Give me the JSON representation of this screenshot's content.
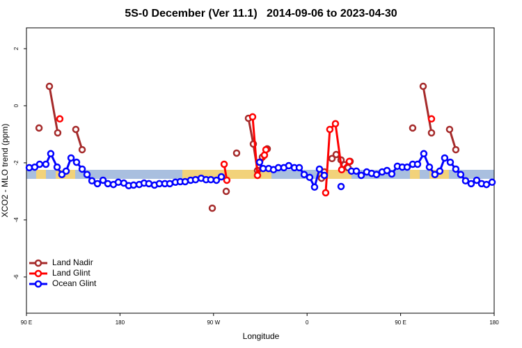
{
  "chart_data": {
    "type": "line",
    "title": "5S-0 December (Ver 11.1)   2014-09-06 to 2023-04-30",
    "x_label": "Longitude",
    "y_label": "XCO2 - MLO trend (ppm)",
    "xlim": [
      90,
      540
    ],
    "ylim": [
      -7.27,
      2.73
    ],
    "xticks": [
      {
        "value": 90,
        "label": "90 E"
      },
      180,
      {
        "value": 270,
        "label": "90 W"
      },
      {
        "value": 360,
        "label": "0"
      },
      {
        "value": 450,
        "label": "90 E"
      },
      {
        "value": 540,
        "label": "180"
      }
    ],
    "yticks": [
      -6,
      -4,
      -2,
      0,
      2
    ],
    "legend": "bottomleft",
    "series": [
      {
        "name": "Land Nadir",
        "color": "#a52a2a",
        "x": [
          102.1,
          null,
          112.1,
          120.1,
          null,
          137.5,
          143.6,
          null,
          268.8,
          null,
          282.2,
          null,
          292.2,
          null,
          303.6,
          308.3,
          312.3,
          null,
          317.0,
          321.7,
          null,
          373.9,
          376.6,
          null,
          384.0,
          388.0,
          392.7,
          396.0,
          399.4,
          401.4,
          null,
          461.6,
          null,
          471.7,
          479.7,
          null,
          497.1,
          503.1
        ],
        "values": [
          -0.78,
          null,
          0.68,
          -0.95,
          null,
          -0.83,
          -1.54,
          null,
          -3.59,
          null,
          -3.0,
          null,
          -1.66,
          null,
          -0.44,
          -1.34,
          -2.27,
          null,
          -1.8,
          -1.51,
          null,
          -2.54,
          -2.32,
          null,
          -1.85,
          -1.71,
          -1.9,
          -2.07,
          -2.17,
          -1.95,
          null,
          -0.78,
          null,
          0.68,
          -0.95,
          null,
          -0.83,
          -1.54
        ]
      },
      {
        "name": "Land Glint",
        "color": "#ff0000",
        "x": [
          122.1,
          null,
          280.2,
          282.8,
          null,
          307.6,
          312.3,
          319.0,
          320.4,
          null,
          377.9,
          381.9,
          387.3,
          393.3,
          400.7,
          null,
          479.7
        ],
        "values": [
          -0.46,
          null,
          -2.05,
          -2.61,
          null,
          -0.39,
          -2.44,
          -1.73,
          -1.54,
          null,
          -3.05,
          -0.83,
          -0.63,
          -2.24,
          -1.95,
          null,
          -0.46
        ]
      },
      {
        "name": "Ocean Glint",
        "color": "#0000ff",
        "x": [
          92.7,
          98.0,
          102.7,
          108.7,
          113.4,
          119.5,
          124.1,
          128.2,
          132.9,
          138.2,
          143.6,
          148.3,
          153.0,
          158.3,
          163.7,
          168.3,
          173.7,
          178.4,
          183.7,
          188.4,
          193.1,
          198.5,
          203.2,
          207.8,
          213.2,
          217.9,
          223.2,
          227.9,
          233.3,
          238.0,
          242.7,
          248.0,
          252.7,
          258.1,
          262.8,
          267.4,
          272.8,
          277.5,
          null,
          314.3,
          317.7,
          323.0,
          327.7,
          332.4,
          337.7,
          342.4,
          347.8,
          352.5,
          357.2,
          362.5,
          367.2,
          371.9,
          376.6,
          null,
          392.7,
          null,
          402.7,
          407.4,
          412.1,
          417.4,
          422.1,
          426.8,
          432.2,
          436.9,
          441.5,
          446.9,
          451.6,
          456.3,
          461.6,
          466.3,
          472.3,
          477.7,
          483.0,
          487.7,
          492.4,
          497.8,
          503.1,
          507.8,
          512.5,
          517.9,
          523.2,
          527.9,
          532.6,
          538.0
        ],
        "values": [
          -2.17,
          -2.15,
          -2.05,
          -2.05,
          -1.68,
          -2.15,
          -2.41,
          -2.29,
          -1.83,
          -1.98,
          -2.22,
          -2.41,
          -2.63,
          -2.73,
          -2.61,
          -2.73,
          -2.76,
          -2.68,
          -2.71,
          -2.8,
          -2.78,
          -2.76,
          -2.71,
          -2.73,
          -2.78,
          -2.73,
          -2.73,
          -2.73,
          -2.68,
          -2.66,
          -2.66,
          -2.61,
          -2.59,
          -2.54,
          -2.59,
          -2.59,
          -2.61,
          -2.49,
          null,
          -1.98,
          -2.2,
          -2.2,
          -2.24,
          -2.17,
          -2.17,
          -2.1,
          -2.17,
          -2.17,
          -2.41,
          -2.51,
          -2.85,
          -2.22,
          -2.44,
          null,
          -2.83,
          null,
          -2.29,
          -2.29,
          -2.44,
          -2.32,
          -2.37,
          -2.41,
          -2.32,
          -2.27,
          -2.39,
          -2.12,
          -2.15,
          -2.15,
          -2.05,
          -2.05,
          -1.68,
          -2.15,
          -2.41,
          -2.29,
          -1.83,
          -1.98,
          -2.22,
          -2.41,
          -2.63,
          -2.73,
          -2.61,
          -2.73,
          -2.76,
          -2.68
        ]
      }
    ]
  }
}
